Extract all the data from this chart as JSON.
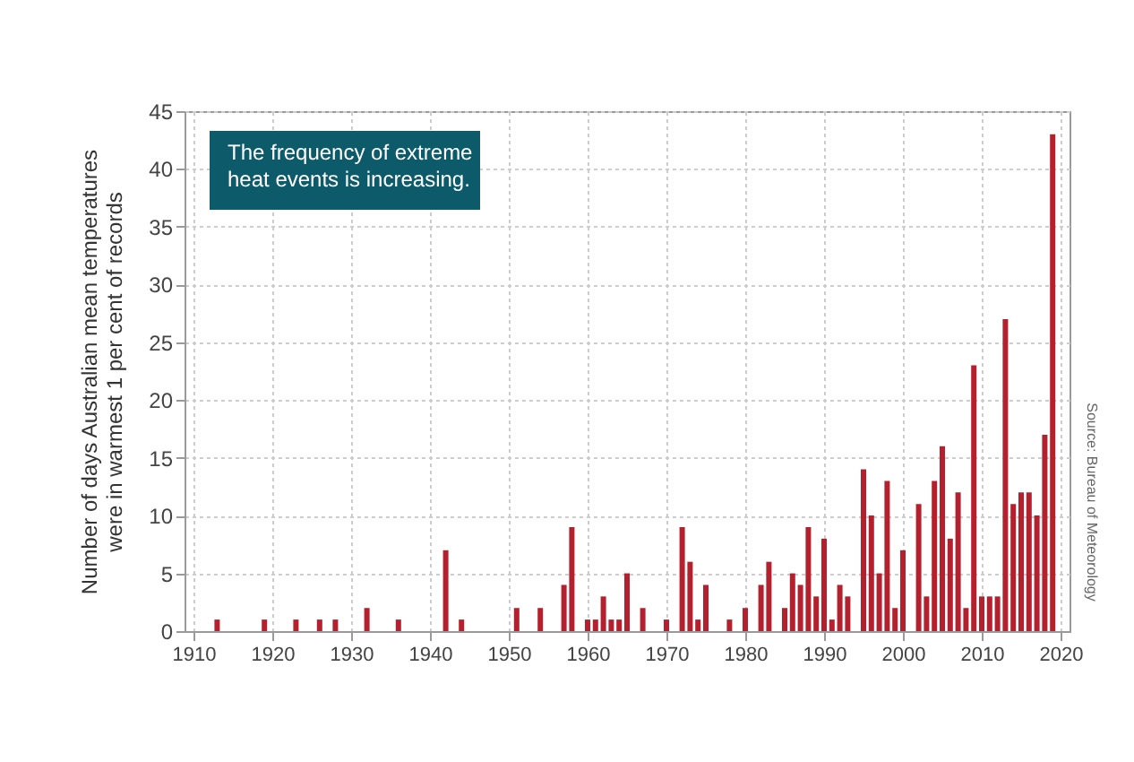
{
  "chart_data": {
    "type": "bar",
    "ylabel": "Number of days Australian mean temperatures\nwere in warmest 1 per cent of records",
    "x": [
      1913,
      1919,
      1923,
      1926,
      1928,
      1932,
      1936,
      1942,
      1944,
      1951,
      1954,
      1957,
      1958,
      1960,
      1961,
      1962,
      1963,
      1964,
      1965,
      1967,
      1970,
      1972,
      1973,
      1974,
      1975,
      1978,
      1980,
      1982,
      1983,
      1985,
      1986,
      1987,
      1988,
      1989,
      1990,
      1991,
      1992,
      1993,
      1995,
      1996,
      1997,
      1998,
      1999,
      2000,
      2002,
      2003,
      2004,
      2005,
      2006,
      2007,
      2008,
      2009,
      2010,
      2011,
      2012,
      2013,
      2014,
      2015,
      2016,
      2017,
      2018,
      2019
    ],
    "values": [
      1,
      1,
      1,
      1,
      1,
      2,
      1,
      7,
      1,
      2,
      2,
      4,
      9,
      1,
      1,
      3,
      1,
      1,
      5,
      2,
      1,
      9,
      6,
      1,
      4,
      1,
      2,
      4,
      6,
      2,
      5,
      4,
      9,
      3,
      8,
      1,
      4,
      3,
      14,
      10,
      5,
      13,
      2,
      7,
      11,
      3,
      13,
      16,
      8,
      12,
      2,
      23,
      3,
      3,
      3,
      27,
      11,
      12,
      12,
      10,
      17,
      43
    ],
    "color": "#b5202e",
    "xlim": [
      1910,
      2020
    ],
    "xticks": [
      1910,
      1920,
      1930,
      1940,
      1950,
      1960,
      1970,
      1980,
      1990,
      2000,
      2010,
      2020
    ],
    "ylim": [
      0,
      45
    ],
    "yticks": [
      0,
      5,
      10,
      15,
      20,
      25,
      30,
      35,
      40,
      45
    ],
    "grid": true,
    "annotations": [
      "The frequency of extreme\nheat events is increasing.",
      "Source: Bureau of Meteorology"
    ]
  }
}
